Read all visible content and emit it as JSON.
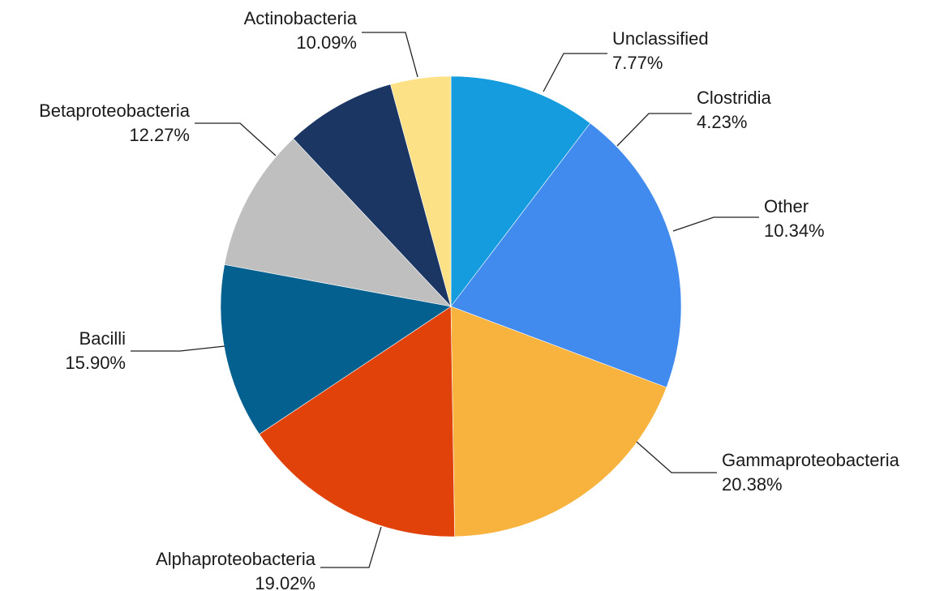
{
  "chart_data": {
    "type": "pie",
    "title": "",
    "start_angle_deg": 90,
    "direction": "clockwise",
    "slices": [
      {
        "label": "Other",
        "value": 10.34,
        "value_label": "10.34%",
        "color": "#149CDE"
      },
      {
        "label": "Gammaproteobacteria",
        "value": 20.38,
        "value_label": "20.38%",
        "color": "#428BEE"
      },
      {
        "label": "Alphaproteobacteria",
        "value": 19.02,
        "value_label": "19.02%",
        "color": "#F8B33F"
      },
      {
        "label": "Bacilli",
        "value": 15.9,
        "value_label": "15.90%",
        "color": "#E0420A"
      },
      {
        "label": "Betaproteobacteria",
        "value": 12.27,
        "value_label": "12.27%",
        "color": "#04608E"
      },
      {
        "label": "Actinobacteria",
        "value": 10.09,
        "value_label": "10.09%",
        "color": "#BFBFBF"
      },
      {
        "label": "Unclassified",
        "value": 7.77,
        "value_label": "7.77%",
        "color": "#1C3664"
      },
      {
        "label": "Clostridia",
        "value": 4.23,
        "value_label": "4.23%",
        "color": "#FDE187"
      }
    ]
  }
}
